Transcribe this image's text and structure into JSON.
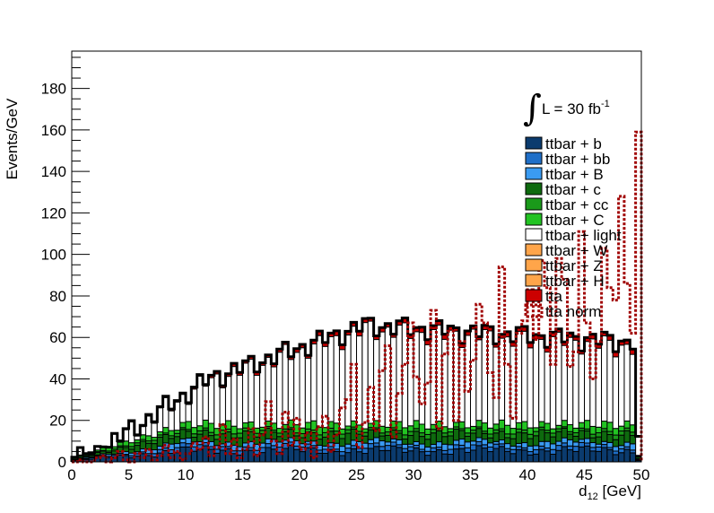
{
  "chart_data": {
    "type": "bar",
    "stacked": true,
    "title": "",
    "xlabel_main": "d",
    "xlabel_sub": "12",
    "xlabel_unit": " [GeV]",
    "ylabel": "Events/GeV",
    "xlim": [
      0,
      50
    ],
    "ylim": [
      0,
      198
    ],
    "xticks": [
      0,
      5,
      10,
      15,
      20,
      25,
      30,
      35,
      40,
      45,
      50
    ],
    "yticks": [
      0,
      20,
      40,
      60,
      80,
      100,
      120,
      140,
      160,
      180
    ],
    "bin_width": 0.5,
    "grid": false,
    "legend_position": "top-right",
    "lumi": {
      "prefix": "L = 30 fb",
      "exponent": "-1"
    },
    "series": [
      {
        "name": "ttbar + b",
        "color": "#0b3b6e",
        "pattern": "wave",
        "base": 5.5,
        "amp": 2.5,
        "ramp": [
          0,
          0.1,
          10,
          1
        ]
      },
      {
        "name": "ttbar + bb",
        "color": "#1f6fc8",
        "pattern": "wave",
        "base": 1.8,
        "amp": 0.8,
        "ramp": [
          0,
          0.1,
          10,
          1
        ]
      },
      {
        "name": "ttbar + B",
        "color": "#3a9bf2",
        "pattern": "wave",
        "base": 2.2,
        "amp": 1.0,
        "ramp": [
          0,
          0.1,
          10,
          1
        ]
      },
      {
        "name": "ttbar + c",
        "color": "#0e6a0e",
        "pattern": "wave",
        "base": 4.0,
        "amp": 1.8,
        "ramp": [
          0,
          0.1,
          10,
          1
        ]
      },
      {
        "name": "ttbar + cc",
        "color": "#1a9a1a",
        "pattern": "wave",
        "base": 1.5,
        "amp": 0.8,
        "ramp": [
          0,
          0.1,
          10,
          1
        ]
      },
      {
        "name": "ttbar + C",
        "color": "#22c322",
        "pattern": "wave",
        "base": 3.0,
        "amp": 1.5,
        "ramp": [
          0,
          0.1,
          10,
          1
        ]
      },
      {
        "name": "ttbar + light",
        "color": "#ffffff",
        "pattern": "wave",
        "base": 35,
        "amp": 6,
        "ramp": [
          0,
          0.0,
          26,
          1
        ]
      },
      {
        "name": "ttbar + W",
        "color": "#ffa54a",
        "pattern": "wave",
        "base": 0.0,
        "amp": 0.0,
        "ramp": [
          0,
          0,
          1,
          1
        ]
      },
      {
        "name": "ttbar + Z",
        "color": "#ffa54a",
        "pattern": "wave",
        "base": 0.0,
        "amp": 0.0,
        "ramp": [
          0,
          0,
          1,
          1
        ]
      },
      {
        "name": "ttbar + H",
        "color": "#ffa54a",
        "pattern": "wave",
        "base": 0.0,
        "amp": 0.0,
        "ramp": [
          0,
          0,
          1,
          1
        ]
      },
      {
        "name": "tta",
        "color": "#cc0000",
        "pattern": "wave",
        "base": 2.0,
        "amp": 0.6,
        "ramp": [
          0,
          0.05,
          25,
          1
        ]
      }
    ],
    "overlay": {
      "name": "tta norm",
      "color": "#a00000",
      "dashed": true,
      "values": [
        0,
        1,
        0,
        0,
        2,
        3,
        0,
        2,
        5,
        1,
        0,
        4,
        2,
        6,
        1,
        3,
        8,
        2,
        5,
        1,
        4,
        9,
        6,
        12,
        3,
        7,
        18,
        4,
        11,
        2,
        6,
        16,
        3,
        13,
        29,
        10,
        4,
        24,
        8,
        21,
        6,
        14,
        2,
        17,
        22,
        5,
        13,
        26,
        30,
        47,
        7,
        19,
        36,
        15,
        44,
        56,
        12,
        33,
        47,
        67,
        41,
        28,
        38,
        73,
        16,
        52,
        63,
        20,
        58,
        34,
        49,
        76,
        67,
        43,
        31,
        94,
        47,
        21,
        62,
        68,
        83,
        59,
        97,
        84,
        47,
        98,
        88,
        46,
        53,
        111,
        67,
        40,
        58,
        103,
        84,
        78,
        128,
        86,
        62,
        159
      ]
    }
  },
  "colors": {
    "frame": "#000000",
    "total_outline": "#000000",
    "background": "#ffffff"
  }
}
